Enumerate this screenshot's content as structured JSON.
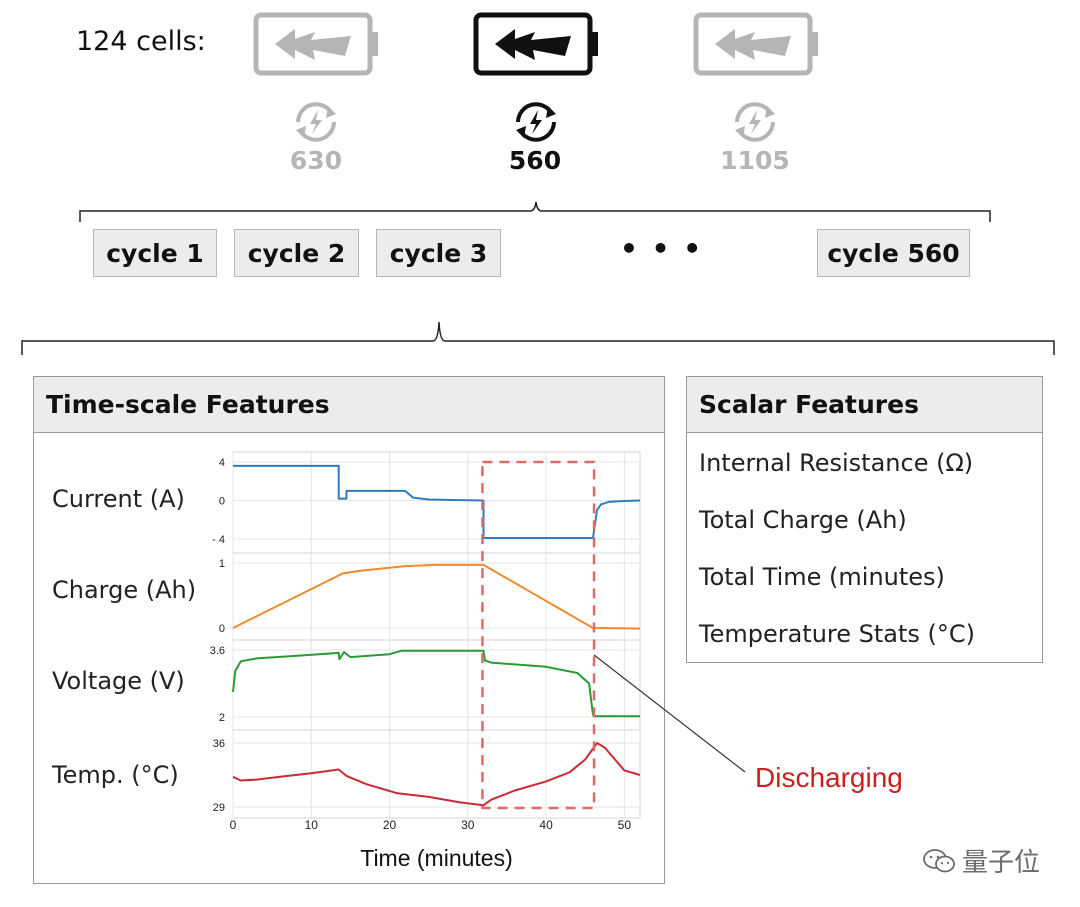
{
  "header": {
    "cells_label": "124 cells:"
  },
  "batteries": [
    {
      "count": "630",
      "state": "muted"
    },
    {
      "count": "560",
      "state": "dark"
    },
    {
      "count": "1105",
      "state": "muted"
    }
  ],
  "cycles": {
    "items": [
      "cycle 1",
      "cycle 2",
      "cycle 3",
      "cycle 560"
    ],
    "ellipsis": "• • •"
  },
  "time_panel": {
    "title": "Time-scale Features",
    "rows": [
      "Current (A)",
      "Charge (Ah)",
      "Voltage (V)",
      "Temp. (°C)"
    ],
    "xlabel": "Time (minutes)"
  },
  "scalar_panel": {
    "title": "Scalar Features",
    "items": [
      "Internal Resistance (Ω)",
      "Total Charge (Ah)",
      "Total Time (minutes)",
      "Temperature Stats (°C)"
    ]
  },
  "annotation": {
    "label": "Discharging",
    "color": "#cc1f1f"
  },
  "watermark": {
    "text": "量子位"
  },
  "colors": {
    "current": "#2f7bbd",
    "charge": "#f08a2c",
    "voltage": "#2a9a34",
    "temp": "#cc2a36",
    "muted": "#b5b5b5"
  },
  "chart_data": {
    "type": "line",
    "x_range": [
      0,
      52
    ],
    "x_ticks": [
      "0",
      "10",
      "20",
      "30",
      "40",
      "50"
    ],
    "panels": [
      {
        "y_ticks": [
          "4",
          "0",
          "- 4"
        ],
        "ylim": [
          -4,
          4
        ],
        "x": [
          0,
          13.5,
          13.5,
          14.5,
          14.5,
          22,
          23,
          25,
          28,
          32,
          32,
          46,
          46.5,
          47,
          48,
          50,
          52
        ],
        "values": [
          3.6,
          3.6,
          0.2,
          0.2,
          1.0,
          1.0,
          0.3,
          0.1,
          0.05,
          0.0,
          -3.9,
          -3.9,
          -1.0,
          -0.4,
          -0.15,
          -0.05,
          0.0
        ]
      },
      {
        "y_ticks": [
          "1",
          "0"
        ],
        "ylim": [
          0,
          1.05
        ],
        "x": [
          0,
          14,
          16,
          22,
          26,
          32,
          46,
          47,
          52
        ],
        "values": [
          0.0,
          0.88,
          0.92,
          1.0,
          1.02,
          1.02,
          0.0,
          0.0,
          -0.01
        ]
      },
      {
        "y_ticks": [
          "3.6",
          "2"
        ],
        "ylim": [
          2,
          3.6
        ],
        "x": [
          0,
          0.3,
          1,
          3,
          8,
          13.5,
          13.6,
          14.2,
          15,
          20,
          21.5,
          25,
          32,
          32.2,
          33,
          40,
          44,
          45.5,
          46,
          46.3,
          52
        ],
        "values": [
          2.6,
          3.1,
          3.33,
          3.4,
          3.46,
          3.53,
          3.38,
          3.55,
          3.43,
          3.5,
          3.58,
          3.58,
          3.58,
          3.35,
          3.3,
          3.2,
          3.05,
          2.8,
          2.05,
          2.02,
          2.02
        ]
      },
      {
        "y_ticks": [
          "36",
          "29"
        ],
        "ylim": [
          29,
          36
        ],
        "x": [
          0,
          1,
          3,
          6,
          10,
          13.5,
          14.5,
          17,
          21,
          25,
          29,
          32,
          33,
          36,
          40,
          43,
          45,
          46.5,
          47.5,
          50,
          52
        ],
        "values": [
          32.3,
          31.9,
          32.0,
          32.3,
          32.7,
          33.1,
          32.4,
          31.5,
          30.5,
          30.1,
          29.5,
          29.2,
          29.8,
          30.8,
          31.8,
          32.8,
          34.2,
          36.0,
          35.5,
          33.0,
          32.5
        ]
      }
    ],
    "highlight": {
      "x_start": 32,
      "x_end": 46,
      "label": "Discharging"
    }
  }
}
